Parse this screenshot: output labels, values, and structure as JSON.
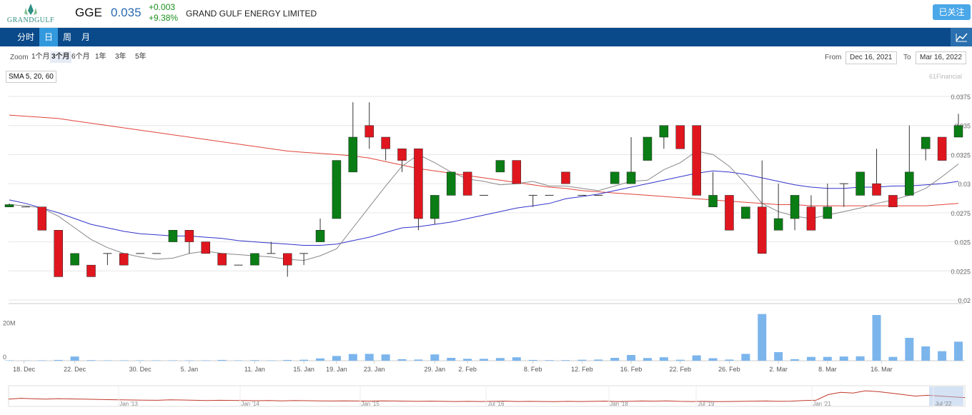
{
  "header": {
    "logo_text": "GRANDGULF",
    "ticker": "GGE",
    "price": "0.035",
    "change_abs": "+0.003",
    "change_pct": "+9.38%",
    "company": "GRAND GULF ENERGY LIMITED",
    "follow_label": "已关注"
  },
  "nav": {
    "tabs": [
      "分时",
      "日",
      "周",
      "月"
    ],
    "active": "日",
    "chart_icon": "line-chart-icon"
  },
  "toolbar": {
    "zoom_label": "Zoom",
    "zoom_options": [
      "1个月",
      "3个月",
      "6个月",
      "1年",
      "3年",
      "5年"
    ],
    "zoom_active": "3个月",
    "from_label": "From",
    "from_value": "Dec 16, 2021",
    "to_label": "To",
    "to_value": "Mar 16, 2022"
  },
  "sma_label": "SMA 5, 20, 60",
  "credit": "61Financial",
  "colors": {
    "up": "#0a7d14",
    "down": "#e0161f",
    "sma5": "#888888",
    "sma20": "#3333cc",
    "sma60": "#e0443a",
    "volume": "#7cb5ec",
    "navbar": "#0a4a8a",
    "accent": "#3399dd"
  },
  "chart_data": {
    "type": "candlestick",
    "y_ticks": [
      "0.0375",
      "0.035",
      "0.0325",
      "0.03",
      "0.0275",
      "0.025",
      "0.0225",
      "0.02"
    ],
    "ylim": [
      0.02,
      0.0375
    ],
    "x_ticks": [
      "18. Dec",
      "22. Dec",
      "30. Dec",
      "5. Jan",
      "11. Jan",
      "15. Jan",
      "19. Jan",
      "23. Jan",
      "29. Jan",
      "2. Feb",
      "8. Feb",
      "12. Feb",
      "16. Feb",
      "22. Feb",
      "26. Feb",
      "2. Mar",
      "8. Mar",
      "16. Mar"
    ],
    "x_tick_index": [
      0.9,
      4,
      8,
      11,
      15,
      18,
      20,
      22.3,
      26,
      28,
      32,
      35,
      38,
      41,
      44,
      47,
      50,
      53.3
    ],
    "ohlc": [
      [
        0.028,
        0.0283,
        0.028,
        0.0282
      ],
      [
        0.028,
        0.028,
        0.028,
        0.028
      ],
      [
        0.028,
        0.028,
        0.026,
        0.026
      ],
      [
        0.026,
        0.026,
        0.022,
        0.022
      ],
      [
        0.023,
        0.024,
        0.023,
        0.024
      ],
      [
        0.023,
        0.023,
        0.022,
        0.022
      ],
      [
        0.024,
        0.024,
        0.023,
        0.024
      ],
      [
        0.024,
        0.024,
        0.023,
        0.023
      ],
      [
        0.024,
        0.024,
        0.024,
        0.024
      ],
      [
        0.024,
        0.024,
        0.024,
        0.024
      ],
      [
        0.025,
        0.026,
        0.025,
        0.026
      ],
      [
        0.026,
        0.026,
        0.024,
        0.025
      ],
      [
        0.025,
        0.025,
        0.024,
        0.024
      ],
      [
        0.024,
        0.024,
        0.023,
        0.023
      ],
      [
        0.023,
        0.023,
        0.023,
        0.023
      ],
      [
        0.023,
        0.024,
        0.023,
        0.024
      ],
      [
        0.024,
        0.025,
        0.024,
        0.024
      ],
      [
        0.024,
        0.024,
        0.022,
        0.023
      ],
      [
        0.024,
        0.024,
        0.023,
        0.024
      ],
      [
        0.025,
        0.027,
        0.025,
        0.026
      ],
      [
        0.027,
        0.032,
        0.027,
        0.032
      ],
      [
        0.031,
        0.037,
        0.031,
        0.034
      ],
      [
        0.035,
        0.037,
        0.033,
        0.034
      ],
      [
        0.034,
        0.034,
        0.032,
        0.033
      ],
      [
        0.033,
        0.033,
        0.031,
        0.032
      ],
      [
        0.033,
        0.033,
        0.026,
        0.027
      ],
      [
        0.027,
        0.029,
        0.0265,
        0.029
      ],
      [
        0.029,
        0.031,
        0.029,
        0.031
      ],
      [
        0.031,
        0.031,
        0.029,
        0.029
      ],
      [
        0.029,
        0.029,
        0.029,
        0.029
      ],
      [
        0.031,
        0.032,
        0.031,
        0.032
      ],
      [
        0.032,
        0.032,
        0.03,
        0.03
      ],
      [
        0.029,
        0.029,
        0.028,
        0.029
      ],
      [
        0.029,
        0.029,
        0.029,
        0.029
      ],
      [
        0.031,
        0.031,
        0.03,
        0.03
      ],
      [
        0.029,
        0.029,
        0.029,
        0.029
      ],
      [
        0.029,
        0.029,
        0.029,
        0.029
      ],
      [
        0.03,
        0.031,
        0.03,
        0.031
      ],
      [
        0.03,
        0.034,
        0.03,
        0.031
      ],
      [
        0.032,
        0.034,
        0.032,
        0.034
      ],
      [
        0.034,
        0.035,
        0.033,
        0.035
      ],
      [
        0.035,
        0.035,
        0.033,
        0.033
      ],
      [
        0.035,
        0.035,
        0.029,
        0.029
      ],
      [
        0.028,
        0.031,
        0.028,
        0.029
      ],
      [
        0.029,
        0.029,
        0.026,
        0.026
      ],
      [
        0.027,
        0.028,
        0.027,
        0.028
      ],
      [
        0.028,
        0.032,
        0.024,
        0.024
      ],
      [
        0.026,
        0.03,
        0.026,
        0.027
      ],
      [
        0.027,
        0.029,
        0.026,
        0.029
      ],
      [
        0.028,
        0.029,
        0.026,
        0.026
      ],
      [
        0.027,
        0.03,
        0.027,
        0.028
      ],
      [
        0.03,
        0.03,
        0.028,
        0.03
      ],
      [
        0.029,
        0.031,
        0.029,
        0.031
      ],
      [
        0.03,
        0.033,
        0.029,
        0.029
      ],
      [
        0.029,
        0.029,
        0.028,
        0.028
      ],
      [
        0.029,
        0.035,
        0.029,
        0.031
      ],
      [
        0.033,
        0.034,
        0.032,
        0.034
      ],
      [
        0.034,
        0.034,
        0.032,
        0.032
      ],
      [
        0.034,
        0.036,
        0.034,
        0.035
      ]
    ],
    "sma5": [
      0.0282,
      0.0281,
      0.0279,
      0.0272,
      0.0262,
      0.0252,
      0.0245,
      0.024,
      0.0237,
      0.0235,
      0.0236,
      0.024,
      0.0242,
      0.024,
      0.0239,
      0.0238,
      0.0237,
      0.0235,
      0.0234,
      0.0238,
      0.0244,
      0.0262,
      0.028,
      0.0298,
      0.0315,
      0.0325,
      0.0318,
      0.031,
      0.0304,
      0.0302,
      0.0299,
      0.03,
      0.0302,
      0.0298,
      0.0298,
      0.0296,
      0.0294,
      0.0298,
      0.0302,
      0.0303,
      0.0312,
      0.0318,
      0.0328,
      0.0325,
      0.0315,
      0.03,
      0.0283,
      0.0276,
      0.0272,
      0.027,
      0.0273,
      0.0276,
      0.0279,
      0.0283,
      0.0286,
      0.029,
      0.0296,
      0.0306,
      0.0317
    ],
    "sma20": [
      0.0286,
      0.0283,
      0.0279,
      0.0275,
      0.027,
      0.0265,
      0.0262,
      0.0259,
      0.0257,
      0.0256,
      0.0255,
      0.0255,
      0.0254,
      0.0253,
      0.0251,
      0.025,
      0.0249,
      0.0248,
      0.0247,
      0.0247,
      0.0248,
      0.0251,
      0.0254,
      0.0258,
      0.0262,
      0.0263,
      0.0265,
      0.0267,
      0.027,
      0.0273,
      0.0276,
      0.0279,
      0.0281,
      0.0283,
      0.0287,
      0.0289,
      0.0291,
      0.0294,
      0.0297,
      0.03,
      0.0303,
      0.0306,
      0.0309,
      0.0311,
      0.031,
      0.0308,
      0.0305,
      0.0302,
      0.0299,
      0.0297,
      0.0296,
      0.0296,
      0.0297,
      0.0297,
      0.0298,
      0.0298,
      0.0299,
      0.03,
      0.0302
    ],
    "sma60": [
      0.0359,
      0.0358,
      0.0357,
      0.0356,
      0.0354,
      0.0352,
      0.035,
      0.0348,
      0.0346,
      0.0344,
      0.0342,
      0.034,
      0.0338,
      0.0336,
      0.0334,
      0.0332,
      0.033,
      0.0328,
      0.0327,
      0.0326,
      0.0325,
      0.0324,
      0.0322,
      0.0319,
      0.0316,
      0.0313,
      0.0311,
      0.0309,
      0.0307,
      0.0305,
      0.0303,
      0.0301,
      0.0299,
      0.0297,
      0.0296,
      0.0294,
      0.0293,
      0.0292,
      0.0291,
      0.029,
      0.0289,
      0.0288,
      0.0287,
      0.0286,
      0.0285,
      0.0284,
      0.0283,
      0.0282,
      0.0282,
      0.0281,
      0.0281,
      0.0281,
      0.0281,
      0.0281,
      0.0281,
      0.0281,
      0.0281,
      0.0282,
      0.0283
    ],
    "volume_ticks": [
      "20M",
      "0"
    ],
    "volume_max": 30,
    "volume": [
      0.2,
      0.1,
      0.2,
      0.4,
      2.2,
      0.3,
      0.2,
      0.2,
      0.2,
      0.2,
      0.2,
      0.2,
      0.2,
      0.4,
      0.2,
      0.3,
      0.2,
      0.4,
      0.5,
      1.2,
      2.5,
      3.5,
      3.6,
      3.3,
      0.8,
      0.6,
      3.3,
      1.5,
      1.0,
      1.0,
      1.4,
      1.8,
      0.4,
      0.3,
      0.3,
      0.5,
      0.6,
      1.5,
      3.0,
      1.4,
      1.8,
      0.5,
      2.8,
      1.3,
      0.6,
      3.6,
      24.5,
      4.5,
      0.8,
      2.0,
      2.0,
      2.2,
      2.3,
      24.0,
      2.0,
      12.0,
      7.5,
      5.0,
      10.0
    ],
    "navigator_ticks": [
      "Jan '13",
      "Jan '14",
      "Jan '15",
      "Jul '16",
      "Jan '18",
      "Jul '19",
      "Jan '21",
      "Jul '22"
    ],
    "navigator_series": [
      0.3,
      0.35,
      0.32,
      0.3,
      0.33,
      0.31,
      0.3,
      0.28,
      0.26,
      0.25,
      0.24,
      0.23,
      0.22,
      0.25,
      0.24,
      0.22,
      0.2,
      0.22,
      0.21,
      0.2,
      0.19,
      0.2,
      0.18,
      0.2,
      0.19,
      0.18,
      0.17,
      0.18,
      0.17,
      0.16,
      0.18,
      0.17,
      0.16,
      0.15,
      0.16,
      0.15,
      0.14,
      0.15,
      0.14,
      0.15,
      0.16,
      0.14,
      0.15,
      0.14,
      0.13,
      0.15,
      0.14,
      0.15,
      0.16,
      0.14,
      0.15,
      0.17,
      0.16,
      0.18,
      0.15,
      0.14,
      0.15,
      0.13,
      0.14,
      0.15,
      0.16,
      0.17,
      0.15,
      0.16,
      0.2,
      0.22,
      0.6,
      0.75,
      0.7,
      0.85,
      0.8,
      0.7,
      0.6,
      0.5,
      0.55,
      0.5,
      0.45,
      0.4
    ]
  }
}
